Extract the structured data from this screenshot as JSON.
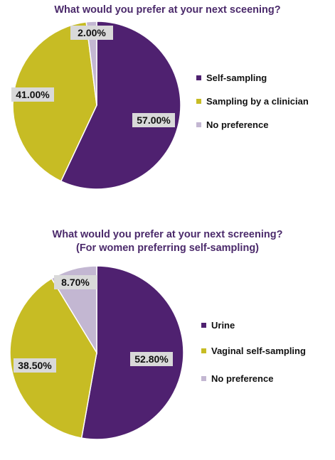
{
  "chart_data": [
    {
      "type": "pie",
      "title": "What would you prefer at your next sceening?",
      "categories": [
        "Self-sampling",
        "Sampling by a clinician",
        "No preference"
      ],
      "values": [
        57.0,
        41.0,
        2.0
      ],
      "data_labels": [
        "57.00%",
        "41.00%",
        "2.00%"
      ],
      "colors": [
        "#4f2170",
        "#c7bc24",
        "#c3b7d2"
      ],
      "legend_position": "right"
    },
    {
      "type": "pie",
      "title": "What would you prefer at your next screening?",
      "subtitle": "(For women preferring self-sampling)",
      "categories": [
        "Urine",
        "Vaginal self-sampling",
        "No preference"
      ],
      "values": [
        52.8,
        38.5,
        8.7
      ],
      "data_labels": [
        "52.80%",
        "38.50%",
        "8.70%"
      ],
      "colors": [
        "#4f2170",
        "#c7bc24",
        "#c3b7d2"
      ],
      "legend_position": "right"
    }
  ]
}
